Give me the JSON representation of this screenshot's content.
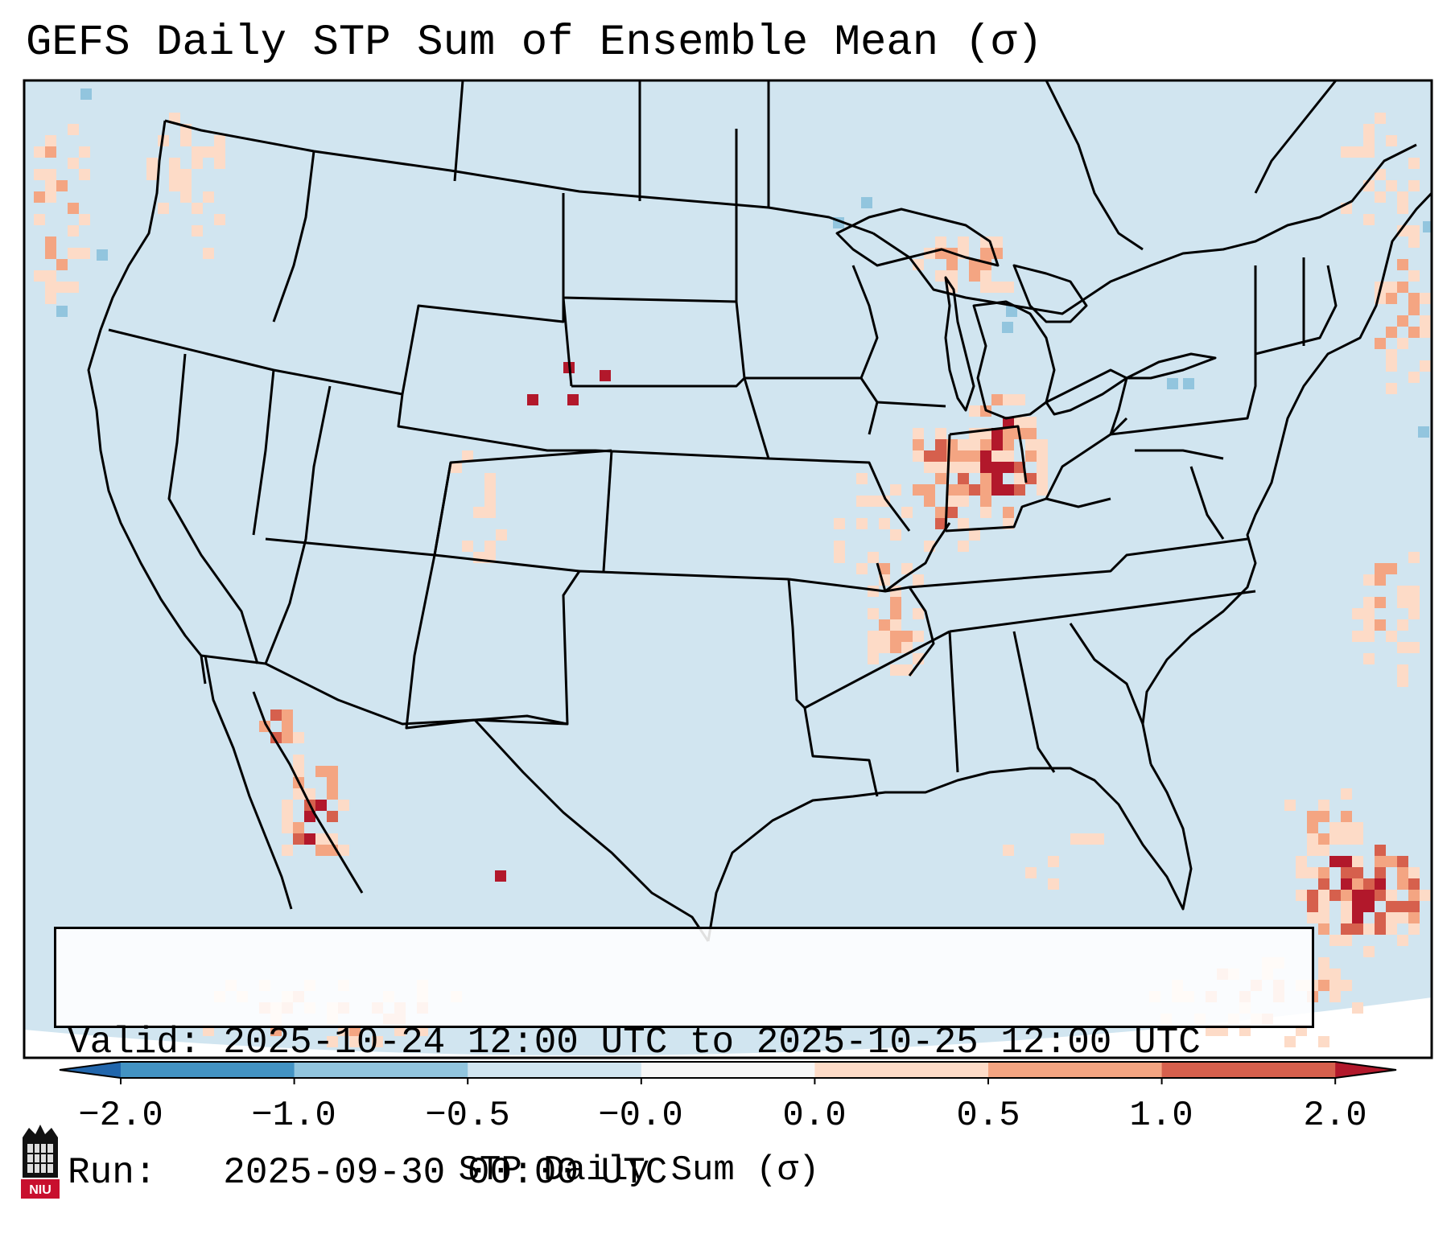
{
  "title": "GEFS Daily STP Sum of Ensemble Mean (σ)",
  "info": {
    "valid": "Valid: 2025-10-24 12:00 UTC to 2025-10-25 12:00 UTC",
    "run": "Run:   2025-09-30 00:00 UTC"
  },
  "colorbar": {
    "label": "STP Daily Sum (σ)",
    "ticks": [
      "−2.0",
      "−1.0",
      "−0.5",
      "−0.0",
      "0.0",
      "0.5",
      "1.0",
      "2.0"
    ],
    "colors": {
      "below": "#2166ac",
      "b1": "#4393c3",
      "b2": "#92c5de",
      "b3": "#d1e5f0",
      "b4": "#f7f7f7",
      "b5": "#fddbc7",
      "b6": "#f4a582",
      "b7": "#d6604d",
      "above": "#b2182b"
    }
  },
  "map": {
    "projection": "Lambert Conformal (CONUS)",
    "background_color": "#d1e5f0",
    "hotspots": [
      {
        "region": "Indiana / Illinois / Michigan",
        "category": "1.0 to 2.0+"
      },
      {
        "region": "Gulf of California",
        "category": "1.0 to 2.0+"
      },
      {
        "region": "Bahamas / Atlantic",
        "category": "1.0 to 2.0+"
      },
      {
        "region": "Nebraska panhandle",
        "category": "above 2.0"
      },
      {
        "region": "Pacific Northwest coast",
        "category": "0.0 to 1.0"
      }
    ]
  },
  "logo": {
    "text": "NIU"
  }
}
